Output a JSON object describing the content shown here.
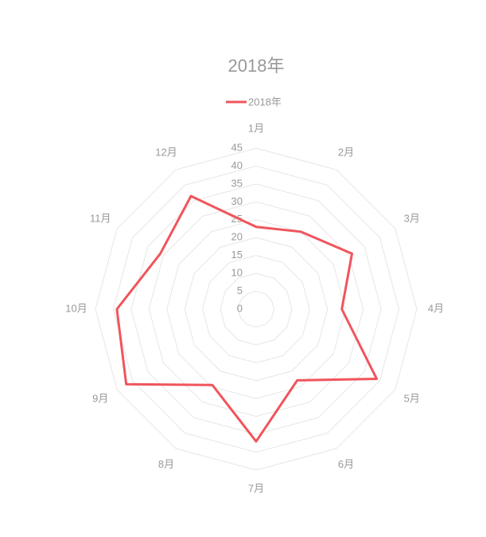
{
  "chart_data": {
    "type": "radar",
    "title": "2018年",
    "categories": [
      "1月",
      "2月",
      "3月",
      "4月",
      "5月",
      "6月",
      "7月",
      "8月",
      "9月",
      "10月",
      "11月",
      "12月"
    ],
    "series": [
      {
        "name": "2018年",
        "color": "#f0555c",
        "values": [
          23,
          25,
          31,
          24,
          39,
          23,
          37,
          24.5,
          42,
          39,
          31,
          36.5
        ]
      }
    ],
    "ylim": [
      0,
      45
    ],
    "yticks": [
      0,
      5,
      10,
      15,
      20,
      25,
      30,
      35,
      40,
      45
    ],
    "grid": true
  }
}
